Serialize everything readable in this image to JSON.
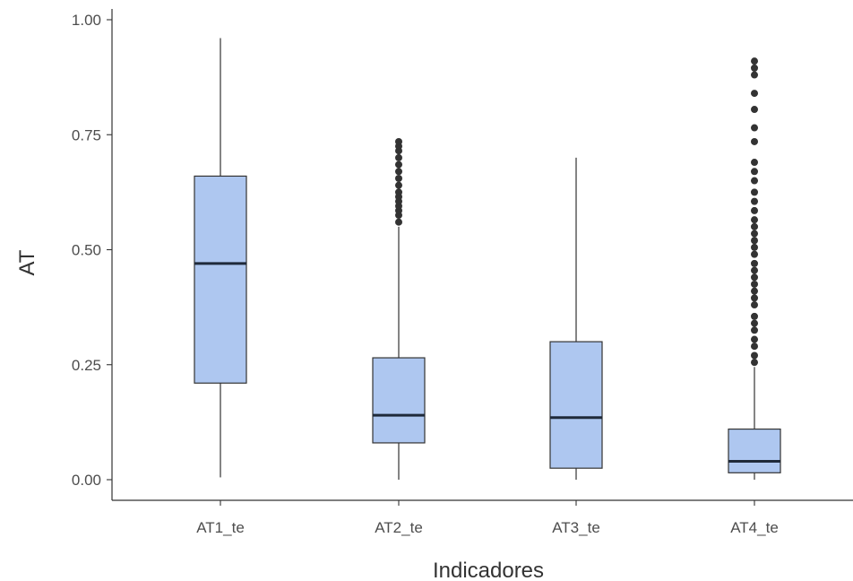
{
  "chart_data": {
    "type": "boxplot",
    "xlabel": "Indicadores",
    "ylabel": "AT",
    "ylim": [
      0,
      1
    ],
    "yticks": [
      "0.00",
      "0.25",
      "0.50",
      "0.75",
      "1.00"
    ],
    "grid": false,
    "legend": "none",
    "box_fill": "#aec7f0",
    "line_color": "#333333",
    "categories": [
      "AT1_te",
      "AT2_te",
      "AT3_te",
      "AT4_te"
    ],
    "boxes": [
      {
        "name": "AT1_te",
        "min": 0.005,
        "q1": 0.21,
        "median": 0.47,
        "q3": 0.66,
        "max": 0.96,
        "outliers": []
      },
      {
        "name": "AT2_te",
        "min": 0.0,
        "q1": 0.08,
        "median": 0.14,
        "q3": 0.265,
        "max": 0.55,
        "outliers": [
          0.56,
          0.575,
          0.585,
          0.595,
          0.605,
          0.615,
          0.625,
          0.64,
          0.655,
          0.67,
          0.685,
          0.7,
          0.715,
          0.725,
          0.735
        ]
      },
      {
        "name": "AT3_te",
        "min": 0.0,
        "q1": 0.025,
        "median": 0.135,
        "q3": 0.3,
        "max": 0.7,
        "outliers": []
      },
      {
        "name": "AT4_te",
        "min": 0.0,
        "q1": 0.015,
        "median": 0.04,
        "q3": 0.11,
        "max": 0.245,
        "outliers": [
          0.255,
          0.27,
          0.29,
          0.305,
          0.325,
          0.34,
          0.355,
          0.38,
          0.395,
          0.41,
          0.425,
          0.44,
          0.455,
          0.47,
          0.49,
          0.505,
          0.52,
          0.535,
          0.55,
          0.565,
          0.585,
          0.605,
          0.625,
          0.65,
          0.67,
          0.69,
          0.735,
          0.765,
          0.805,
          0.84,
          0.88,
          0.895,
          0.91
        ]
      }
    ]
  }
}
